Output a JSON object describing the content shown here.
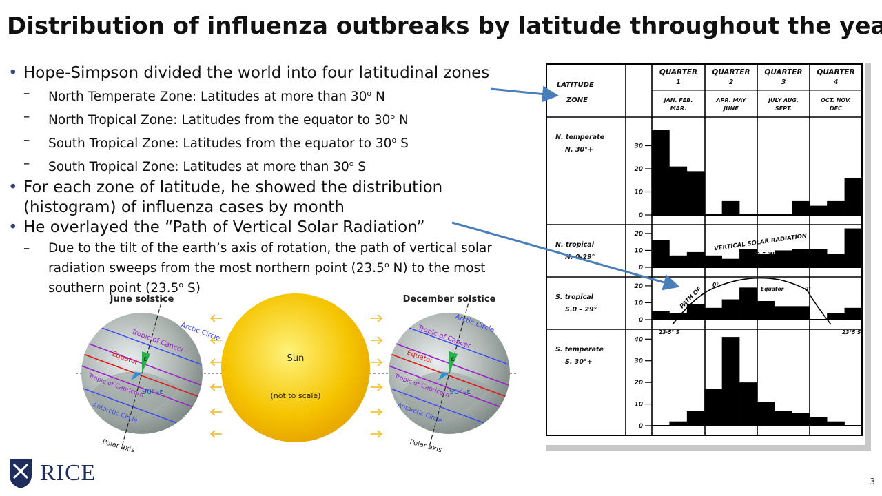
{
  "slide": {
    "title": "Distribution of influenza outbreaks by latitude throughout the year",
    "number": "3"
  },
  "bullets": {
    "b1": "Hope-Simpson divided the world into four latitudinal zones",
    "s1": {
      "pre": "North Temperate Zone: Latitudes at more than 30",
      "sup": "o",
      "post": " N"
    },
    "s2": {
      "pre": "North Tropical Zone: Latitudes from the equator to 30",
      "sup": "o",
      "post": " N"
    },
    "s3": {
      "pre": "South Tropical Zone: Latitudes from the equator to 30",
      "sup": "o",
      "post": " S"
    },
    "s4": {
      "pre": "South Tropical Zone: Latitudes at more than 30",
      "sup": "o",
      "post": " S"
    },
    "b2": "For each zone of latitude, he showed the distribution (histogram) of influenza cases by month",
    "b3": "He overlayed the “Path of Vertical Solar Radiation”",
    "s5": {
      "a": "Due to the tilt of the earth’s axis of rotation, the path of vertical solar radiation sweeps from the most northern point (23.5",
      "sup1": "o",
      "b": " N) to the most southern point (23.5",
      "sup2": "o",
      "c": " S)"
    }
  },
  "logo": {
    "text": "RICE",
    "icon": "rice-shield-icon"
  },
  "figure": {
    "header": {
      "latitude_zone": [
        "LATITUDE",
        "ZONE"
      ],
      "quarters": [
        {
          "title": "QUARTER",
          "num": "1",
          "months": [
            "JAN. FEB.",
            "MAR."
          ]
        },
        {
          "title": "QUARTER",
          "num": "2",
          "months": [
            "APR. MAY",
            "JUNE"
          ]
        },
        {
          "title": "QUARTER",
          "num": "3",
          "months": [
            "JULY AUG.",
            "SEPT."
          ]
        },
        {
          "title": "QUARTER",
          "num": "4",
          "months": [
            "OCT. NOV.",
            "DEC"
          ]
        }
      ]
    },
    "zones": [
      {
        "name": "N. temperate",
        "range": "N. 30°+",
        "ticks": [
          "30",
          "20",
          "10",
          "0"
        ],
        "max": 40,
        "values": [
          37,
          21,
          19,
          0,
          6,
          0,
          0,
          0,
          6,
          4,
          6,
          16
        ]
      },
      {
        "name": "N. tropical",
        "range": "N. 0-29°",
        "ticks": [
          "20",
          "10",
          "0"
        ],
        "max": 22,
        "values": [
          16,
          7,
          9,
          7,
          5,
          11,
          8,
          10,
          11,
          11,
          8,
          23
        ]
      },
      {
        "name": "S. tropical",
        "range": "S.0 – 29°",
        "ticks": [
          "20",
          "10",
          "0"
        ],
        "max": 22,
        "values": [
          5,
          4,
          9,
          7,
          12,
          19,
          11,
          8,
          8,
          0,
          4,
          7
        ]
      },
      {
        "name": "S. temperate",
        "range": "S. 30°+",
        "ticks": [
          "40",
          "30",
          "20",
          "10",
          "0"
        ],
        "max": 42,
        "values": [
          0,
          2,
          7,
          17,
          41,
          20,
          11,
          7,
          6,
          4,
          2,
          0
        ]
      }
    ],
    "annotations": {
      "vertical_solar_radiation": "VERTICAL SOLAR RADIATION",
      "path_of": "PATH OF",
      "n_lat": "23·5 °N",
      "equator": "Equator",
      "deg0a": "0°",
      "deg0b": "0°",
      "s_lat_left": "23·5° S",
      "s_lat_right": "23°5 S"
    }
  },
  "diagram": {
    "june_label": "June solstice",
    "december_label": "December solstice",
    "sun_label": "Sun",
    "scale_note": "(not to scale)",
    "globe_labels": {
      "arctic": "Arctic Circle",
      "cancer": "Tropic of Cancer",
      "equator": "Equator",
      "capricorn": "Tropic of Capricorn",
      "antarctic": "Antarctic Circle",
      "axis": "Polar axis",
      "epsilon": "ε",
      "angle": "90°–ε"
    }
  },
  "colors": {
    "title": "#000000",
    "bullet": "#3b4a78",
    "arrow": "#4a7ebb",
    "sun": "#f5c400",
    "rice_blue": "#1f2d5c"
  }
}
